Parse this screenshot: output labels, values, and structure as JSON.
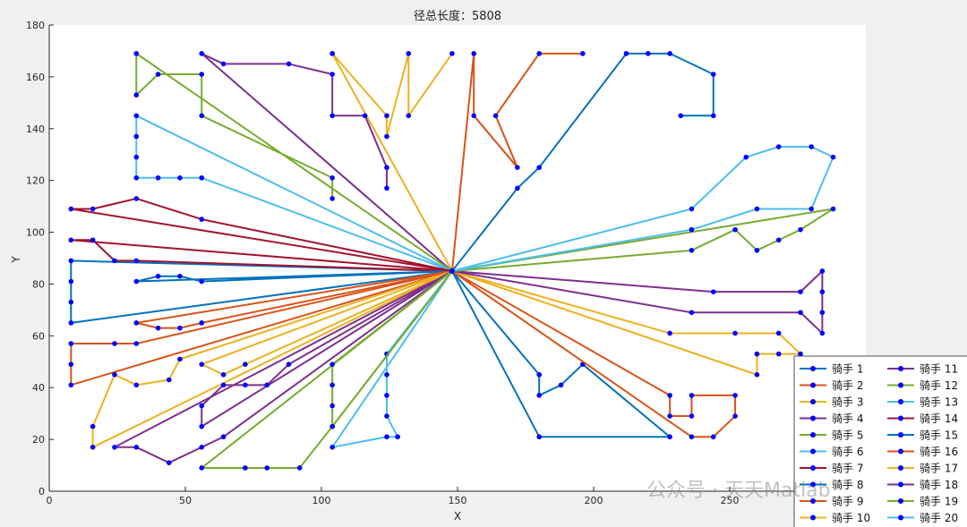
{
  "chart_data": {
    "type": "line",
    "title": "径总长度：5808",
    "xlabel": "X",
    "ylabel": "Y",
    "xlim": [
      0,
      300
    ],
    "ylim": [
      0,
      180
    ],
    "xticks": [
      0,
      50,
      100,
      150,
      200,
      250
    ],
    "yticks": [
      0,
      20,
      40,
      60,
      80,
      100,
      120,
      140,
      160,
      180
    ],
    "grid": false,
    "legend_position": "bottom-right",
    "legend_columns": 2,
    "depot": [
      148,
      85
    ],
    "series": [
      {
        "name": "骑手 1",
        "color": "#0072BD",
        "points": [
          [
            148,
            85
          ],
          [
            8,
            89
          ],
          [
            8,
            81
          ],
          [
            8,
            73
          ],
          [
            8,
            65
          ],
          [
            148,
            85
          ]
        ]
      },
      {
        "name": "骑手 2",
        "color": "#D95319",
        "points": [
          [
            148,
            85
          ],
          [
            8,
            41
          ],
          [
            8,
            49
          ],
          [
            8,
            57
          ],
          [
            24,
            57
          ],
          [
            32,
            57
          ],
          [
            148,
            85
          ]
        ]
      },
      {
        "name": "骑手 3",
        "color": "#EDB120",
        "points": [
          [
            148,
            85
          ],
          [
            16,
            17
          ],
          [
            16,
            25
          ],
          [
            24,
            45
          ],
          [
            32,
            41
          ],
          [
            44,
            43
          ],
          [
            48,
            51
          ],
          [
            148,
            85
          ]
        ]
      },
      {
        "name": "骑手 4",
        "color": "#7E2F8E",
        "points": [
          [
            148,
            85
          ],
          [
            24,
            17
          ],
          [
            32,
            17
          ],
          [
            44,
            11
          ],
          [
            56,
            17
          ],
          [
            64,
            21
          ],
          [
            148,
            85
          ]
        ]
      },
      {
        "name": "骑手 5",
        "color": "#77AC30",
        "points": [
          [
            148,
            85
          ],
          [
            56,
            9
          ],
          [
            72,
            9
          ],
          [
            80,
            9
          ],
          [
            92,
            9
          ],
          [
            104,
            25
          ],
          [
            148,
            85
          ]
        ]
      },
      {
        "name": "骑手 6",
        "color": "#4DBEEE",
        "points": [
          [
            148,
            85
          ],
          [
            104,
            17
          ],
          [
            124,
            21
          ],
          [
            128,
            21
          ],
          [
            124,
            29
          ],
          [
            124,
            37
          ],
          [
            124,
            45
          ],
          [
            124,
            53
          ],
          [
            148,
            85
          ]
        ]
      },
      {
        "name": "骑手 7",
        "color": "#A2142F",
        "points": [
          [
            148,
            85
          ],
          [
            8,
            97
          ],
          [
            16,
            97
          ],
          [
            24,
            89
          ],
          [
            32,
            89
          ],
          [
            148,
            85
          ]
        ]
      },
      {
        "name": "骑手 8",
        "color": "#0072BD",
        "points": [
          [
            148,
            85
          ],
          [
            32,
            81
          ],
          [
            40,
            83
          ],
          [
            48,
            83
          ],
          [
            56,
            81
          ],
          [
            148,
            85
          ]
        ]
      },
      {
        "name": "骑手 9",
        "color": "#D95319",
        "points": [
          [
            148,
            85
          ],
          [
            32,
            65
          ],
          [
            40,
            63
          ],
          [
            48,
            63
          ],
          [
            56,
            65
          ],
          [
            148,
            85
          ]
        ]
      },
      {
        "name": "骑手 10",
        "color": "#EDB120",
        "points": [
          [
            148,
            85
          ],
          [
            56,
            49
          ],
          [
            64,
            45
          ],
          [
            72,
            49
          ],
          [
            148,
            85
          ]
        ]
      },
      {
        "name": "骑手 11",
        "color": "#7E2F8E",
        "points": [
          [
            148,
            85
          ],
          [
            56,
            25
          ],
          [
            56,
            33
          ],
          [
            64,
            41
          ],
          [
            72,
            41
          ],
          [
            80,
            41
          ],
          [
            88,
            49
          ],
          [
            148,
            85
          ]
        ]
      },
      {
        "name": "骑手 12",
        "color": "#77AC30",
        "points": [
          [
            148,
            85
          ],
          [
            104,
            49
          ],
          [
            104,
            41
          ],
          [
            104,
            33
          ],
          [
            104,
            25
          ],
          [
            148,
            85
          ]
        ]
      },
      {
        "name": "骑手 13",
        "color": "#4DBEEE",
        "points": [
          [
            148,
            85
          ],
          [
            32,
            145
          ],
          [
            32,
            137
          ],
          [
            32,
            129
          ],
          [
            32,
            121
          ],
          [
            40,
            121
          ],
          [
            48,
            121
          ],
          [
            56,
            121
          ],
          [
            148,
            85
          ]
        ]
      },
      {
        "name": "骑手 14",
        "color": "#A2142F",
        "points": [
          [
            148,
            85
          ],
          [
            8,
            109
          ],
          [
            16,
            109
          ],
          [
            32,
            113
          ],
          [
            56,
            105
          ],
          [
            148,
            85
          ]
        ]
      },
      {
        "name": "骑手 15",
        "color": "#0072BD",
        "points": [
          [
            148,
            85
          ],
          [
            180,
            45
          ],
          [
            180,
            37
          ],
          [
            188,
            41
          ],
          [
            196,
            49
          ],
          [
            228,
            21
          ],
          [
            180,
            21
          ],
          [
            148,
            85
          ]
        ]
      },
      {
        "name": "骑手 16",
        "color": "#D95319",
        "points": [
          [
            148,
            85
          ],
          [
            228,
            37
          ],
          [
            228,
            29
          ],
          [
            236,
            29
          ],
          [
            236,
            37
          ],
          [
            252,
            37
          ],
          [
            252,
            29
          ],
          [
            244,
            21
          ],
          [
            236,
            21
          ],
          [
            148,
            85
          ]
        ]
      },
      {
        "name": "骑手 17",
        "color": "#EDB120",
        "points": [
          [
            148,
            85
          ],
          [
            228,
            61
          ],
          [
            252,
            61
          ],
          [
            268,
            61
          ],
          [
            276,
            53
          ],
          [
            268,
            53
          ],
          [
            260,
            53
          ],
          [
            260,
            45
          ],
          [
            148,
            85
          ]
        ]
      },
      {
        "name": "骑手 18",
        "color": "#7E2F8E",
        "points": [
          [
            148,
            85
          ],
          [
            236,
            69
          ],
          [
            276,
            69
          ],
          [
            284,
            61
          ],
          [
            284,
            69
          ],
          [
            284,
            77
          ],
          [
            284,
            85
          ],
          [
            276,
            77
          ],
          [
            244,
            77
          ],
          [
            148,
            85
          ]
        ]
      },
      {
        "name": "骑手 19",
        "color": "#77AC30",
        "points": [
          [
            148,
            85
          ],
          [
            236,
            93
          ],
          [
            252,
            101
          ],
          [
            260,
            93
          ],
          [
            268,
            97
          ],
          [
            276,
            101
          ],
          [
            288,
            109
          ],
          [
            148,
            85
          ]
        ]
      },
      {
        "name": "骑手 20",
        "color": "#4DBEEE",
        "points": [
          [
            148,
            85
          ],
          [
            236,
            101
          ],
          [
            260,
            109
          ],
          [
            280,
            109
          ],
          [
            288,
            129
          ],
          [
            280,
            133
          ],
          [
            268,
            133
          ],
          [
            256,
            129
          ],
          [
            236,
            109
          ],
          [
            148,
            85
          ]
        ]
      }
    ],
    "rays": [
      {
        "color": "#EDB120",
        "x": [
          148,
          104,
          104,
          124,
          124,
          132,
          132,
          148
        ],
        "y": [
          85,
          169,
          169,
          145,
          137,
          169,
          145,
          169
        ]
      },
      {
        "color": "#7E2F8E",
        "x": [
          148,
          56,
          64,
          88,
          104,
          104,
          116,
          124,
          124
        ],
        "y": [
          85,
          169,
          165,
          165,
          161,
          145,
          145,
          125,
          117
        ]
      },
      {
        "color": "#77AC30",
        "x": [
          148,
          32,
          32,
          40,
          56,
          56,
          104,
          104
        ],
        "y": [
          85,
          169,
          153,
          161,
          161,
          145,
          121,
          113
        ]
      },
      {
        "color": "#D95319",
        "x": [
          148,
          156,
          156,
          172,
          164,
          180,
          196
        ],
        "y": [
          85,
          169,
          145,
          125,
          145,
          169,
          169
        ]
      },
      {
        "color": "#0072BD",
        "x": [
          148,
          172,
          180,
          212,
          220,
          228,
          244,
          244,
          232
        ],
        "y": [
          85,
          117,
          125,
          169,
          169,
          169,
          161,
          145,
          145
        ]
      }
    ]
  },
  "watermark": {
    "text": "公众号 · 天天Matlab"
  }
}
